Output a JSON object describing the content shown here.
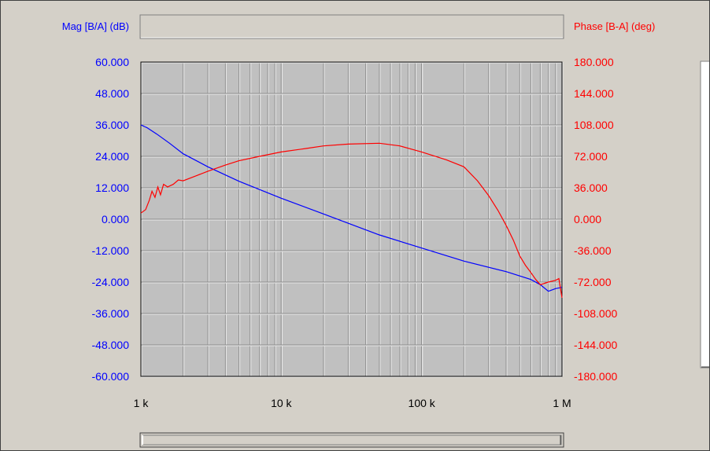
{
  "chart_data": {
    "type": "line",
    "xscale": "log",
    "xlim": [
      1000,
      1000000
    ],
    "x_tick_values": [
      1000,
      10000,
      100000,
      1000000
    ],
    "x_tick_labels": [
      "1 k",
      "10 k",
      "100 k",
      "1 M"
    ],
    "grid": true,
    "left_axis": {
      "label": "Mag [B/A] (dB)",
      "color": "#0000ff",
      "ylim": [
        -60,
        60
      ],
      "tick_values": [
        60,
        48,
        36,
        24,
        12,
        0,
        -12,
        -24,
        -36,
        -48,
        -60
      ],
      "tick_labels": [
        "60.000",
        "48.000",
        "36.000",
        "24.000",
        "12.000",
        "0.000",
        "-12.000",
        "-24.000",
        "-36.000",
        "-48.000",
        "-60.000"
      ]
    },
    "right_axis": {
      "label": "Phase [B-A] (deg)",
      "color": "#ff0000",
      "ylim": [
        -180,
        180
      ],
      "tick_values": [
        180,
        144,
        108,
        72,
        36,
        0,
        -36,
        -72,
        -108,
        -144,
        -180
      ],
      "tick_labels": [
        "180.000",
        "144.000",
        "108.000",
        "72.000",
        "36.000",
        "0.000",
        "-36.000",
        "-72.000",
        "-108.000",
        "-144.000",
        "-180.000"
      ]
    },
    "series": [
      {
        "axis": "left",
        "color": "#0000ff",
        "x": [
          1000,
          1100,
          1300,
          1600,
          2000,
          3000,
          5000,
          10000,
          20000,
          50000,
          100000,
          200000,
          400000,
          600000,
          700000,
          800000,
          900000,
          1000000
        ],
        "y": [
          36,
          35,
          32.5,
          29,
          25,
          20,
          14.5,
          8,
          2,
          -6,
          -11,
          -16,
          -20,
          -23,
          -25,
          -27.5,
          -26.5,
          -26
        ]
      },
      {
        "axis": "right",
        "color": "#ff0000",
        "x": [
          1000,
          1080,
          1150,
          1200,
          1260,
          1320,
          1380,
          1450,
          1550,
          1700,
          1850,
          2000,
          2500,
          3000,
          4000,
          5000,
          7000,
          10000,
          15000,
          20000,
          30000,
          50000,
          70000,
          100000,
          150000,
          200000,
          250000,
          300000,
          350000,
          400000,
          450000,
          500000,
          550000,
          600000,
          650000,
          700000,
          800000,
          900000,
          950000,
          1000000
        ],
        "y": [
          7,
          11,
          22,
          32,
          25,
          37,
          28,
          40,
          37,
          40,
          45,
          44,
          50,
          55,
          62,
          67,
          72,
          77,
          81,
          84,
          86,
          87,
          84,
          77,
          68,
          60,
          44,
          27,
          10,
          -7,
          -24,
          -42,
          -53,
          -61,
          -69,
          -75,
          -72,
          -70,
          -68,
          -90
        ]
      }
    ]
  }
}
